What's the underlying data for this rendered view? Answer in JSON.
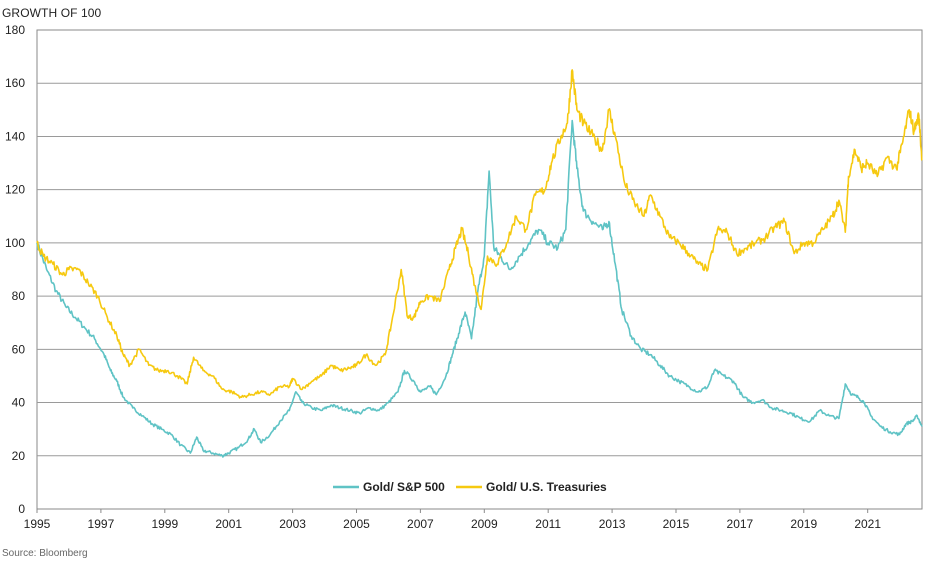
{
  "chart_data": {
    "type": "line",
    "ylabel": "GROWTH OF 100",
    "source": "Source: Bloomberg",
    "xlim": [
      1995,
      2022.7
    ],
    "ylim": [
      0,
      180
    ],
    "yticks": [
      0,
      20,
      40,
      60,
      80,
      100,
      120,
      140,
      160,
      180
    ],
    "xticks": [
      1995,
      1997,
      1999,
      2001,
      2003,
      2005,
      2007,
      2009,
      2011,
      2013,
      2015,
      2017,
      2019,
      2021
    ],
    "grid": "horizontal",
    "legend_position": "bottom-center",
    "series": [
      {
        "name": "Gold/ S&P 500",
        "color": "#5fc3c5",
        "points": [
          [
            1995.0,
            100
          ],
          [
            1995.3,
            90
          ],
          [
            1995.6,
            82
          ],
          [
            1995.9,
            76
          ],
          [
            1996.2,
            72
          ],
          [
            1996.5,
            68
          ],
          [
            1996.8,
            64
          ],
          [
            1997.1,
            58
          ],
          [
            1997.3,
            52
          ],
          [
            1997.5,
            48
          ],
          [
            1997.7,
            42
          ],
          [
            1998.0,
            38
          ],
          [
            1998.3,
            35
          ],
          [
            1998.6,
            32
          ],
          [
            1998.9,
            30
          ],
          [
            1999.2,
            28
          ],
          [
            1999.5,
            24
          ],
          [
            1999.8,
            21
          ],
          [
            2000.0,
            27
          ],
          [
            2000.2,
            22
          ],
          [
            2000.5,
            21
          ],
          [
            2000.8,
            20
          ],
          [
            2001.0,
            21
          ],
          [
            2001.3,
            23
          ],
          [
            2001.6,
            26
          ],
          [
            2001.8,
            30
          ],
          [
            2002.0,
            25
          ],
          [
            2002.3,
            28
          ],
          [
            2002.6,
            33
          ],
          [
            2002.9,
            37
          ],
          [
            2003.1,
            44
          ],
          [
            2003.3,
            40
          ],
          [
            2003.6,
            38
          ],
          [
            2003.9,
            37
          ],
          [
            2004.2,
            39
          ],
          [
            2004.5,
            38
          ],
          [
            2004.8,
            37
          ],
          [
            2005.1,
            36
          ],
          [
            2005.4,
            38
          ],
          [
            2005.7,
            37
          ],
          [
            2006.0,
            40
          ],
          [
            2006.3,
            44
          ],
          [
            2006.5,
            52
          ],
          [
            2006.8,
            48
          ],
          [
            2007.0,
            44
          ],
          [
            2007.3,
            46
          ],
          [
            2007.5,
            43
          ],
          [
            2007.8,
            50
          ],
          [
            2008.0,
            58
          ],
          [
            2008.2,
            66
          ],
          [
            2008.4,
            74
          ],
          [
            2008.6,
            64
          ],
          [
            2008.8,
            82
          ],
          [
            2009.0,
            95
          ],
          [
            2009.15,
            127
          ],
          [
            2009.3,
            98
          ],
          [
            2009.5,
            95
          ],
          [
            2009.8,
            90
          ],
          [
            2010.1,
            95
          ],
          [
            2010.4,
            100
          ],
          [
            2010.7,
            105
          ],
          [
            2011.0,
            100
          ],
          [
            2011.3,
            98
          ],
          [
            2011.55,
            105
          ],
          [
            2011.75,
            146
          ],
          [
            2011.9,
            128
          ],
          [
            2012.1,
            112
          ],
          [
            2012.4,
            108
          ],
          [
            2012.7,
            105
          ],
          [
            2012.9,
            108
          ],
          [
            2013.1,
            92
          ],
          [
            2013.3,
            75
          ],
          [
            2013.6,
            65
          ],
          [
            2013.9,
            60
          ],
          [
            2014.2,
            58
          ],
          [
            2014.5,
            54
          ],
          [
            2014.8,
            50
          ],
          [
            2015.1,
            48
          ],
          [
            2015.4,
            46
          ],
          [
            2015.7,
            44
          ],
          [
            2016.0,
            46
          ],
          [
            2016.2,
            52
          ],
          [
            2016.5,
            50
          ],
          [
            2016.8,
            48
          ],
          [
            2017.1,
            42
          ],
          [
            2017.4,
            40
          ],
          [
            2017.7,
            41
          ],
          [
            2018.0,
            38
          ],
          [
            2018.3,
            37
          ],
          [
            2018.6,
            36
          ],
          [
            2018.9,
            34
          ],
          [
            2019.2,
            33
          ],
          [
            2019.5,
            37
          ],
          [
            2019.8,
            35
          ],
          [
            2020.1,
            34
          ],
          [
            2020.3,
            47
          ],
          [
            2020.5,
            43
          ],
          [
            2020.7,
            42
          ],
          [
            2020.9,
            40
          ],
          [
            2021.1,
            35
          ],
          [
            2021.4,
            31
          ],
          [
            2021.7,
            29
          ],
          [
            2022.0,
            28
          ],
          [
            2022.2,
            32
          ],
          [
            2022.4,
            33
          ],
          [
            2022.55,
            35
          ],
          [
            2022.7,
            31
          ]
        ]
      },
      {
        "name": "Gold/ U.S. Treasuries",
        "color": "#f6c910",
        "points": [
          [
            1995.0,
            100
          ],
          [
            1995.2,
            95
          ],
          [
            1995.5,
            92
          ],
          [
            1995.8,
            88
          ],
          [
            1996.0,
            90
          ],
          [
            1996.3,
            90
          ],
          [
            1996.6,
            85
          ],
          [
            1996.9,
            80
          ],
          [
            1997.2,
            72
          ],
          [
            1997.5,
            65
          ],
          [
            1997.7,
            58
          ],
          [
            1997.9,
            54
          ],
          [
            1998.2,
            60
          ],
          [
            1998.5,
            54
          ],
          [
            1998.8,
            52
          ],
          [
            1999.1,
            52
          ],
          [
            1999.4,
            50
          ],
          [
            1999.7,
            47
          ],
          [
            1999.9,
            57
          ],
          [
            2000.2,
            52
          ],
          [
            2000.5,
            50
          ],
          [
            2000.8,
            45
          ],
          [
            2001.1,
            44
          ],
          [
            2001.4,
            42
          ],
          [
            2001.7,
            43
          ],
          [
            2002.0,
            44
          ],
          [
            2002.3,
            43
          ],
          [
            2002.6,
            46
          ],
          [
            2002.9,
            46
          ],
          [
            2003.0,
            49
          ],
          [
            2003.3,
            45
          ],
          [
            2003.6,
            48
          ],
          [
            2003.9,
            50
          ],
          [
            2004.2,
            54
          ],
          [
            2004.5,
            52
          ],
          [
            2004.8,
            53
          ],
          [
            2005.0,
            54
          ],
          [
            2005.3,
            58
          ],
          [
            2005.6,
            54
          ],
          [
            2005.9,
            58
          ],
          [
            2006.1,
            70
          ],
          [
            2006.4,
            90
          ],
          [
            2006.6,
            72
          ],
          [
            2006.8,
            72
          ],
          [
            2007.0,
            78
          ],
          [
            2007.3,
            80
          ],
          [
            2007.6,
            78
          ],
          [
            2007.9,
            90
          ],
          [
            2008.1,
            98
          ],
          [
            2008.3,
            105
          ],
          [
            2008.5,
            96
          ],
          [
            2008.7,
            84
          ],
          [
            2008.9,
            75
          ],
          [
            2009.1,
            95
          ],
          [
            2009.4,
            92
          ],
          [
            2009.7,
            100
          ],
          [
            2010.0,
            110
          ],
          [
            2010.3,
            105
          ],
          [
            2010.6,
            118
          ],
          [
            2010.9,
            120
          ],
          [
            2011.1,
            130
          ],
          [
            2011.4,
            140
          ],
          [
            2011.6,
            145
          ],
          [
            2011.75,
            165
          ],
          [
            2011.9,
            150
          ],
          [
            2012.1,
            145
          ],
          [
            2012.4,
            140
          ],
          [
            2012.7,
            135
          ],
          [
            2012.9,
            150
          ],
          [
            2013.1,
            140
          ],
          [
            2013.4,
            122
          ],
          [
            2013.7,
            115
          ],
          [
            2014.0,
            110
          ],
          [
            2014.2,
            118
          ],
          [
            2014.5,
            110
          ],
          [
            2014.8,
            102
          ],
          [
            2015.1,
            100
          ],
          [
            2015.4,
            96
          ],
          [
            2015.7,
            92
          ],
          [
            2016.0,
            90
          ],
          [
            2016.3,
            105
          ],
          [
            2016.6,
            104
          ],
          [
            2016.9,
            96
          ],
          [
            2017.2,
            98
          ],
          [
            2017.5,
            100
          ],
          [
            2017.8,
            102
          ],
          [
            2018.1,
            106
          ],
          [
            2018.4,
            108
          ],
          [
            2018.7,
            96
          ],
          [
            2019.0,
            100
          ],
          [
            2019.3,
            100
          ],
          [
            2019.6,
            105
          ],
          [
            2019.9,
            110
          ],
          [
            2020.1,
            116
          ],
          [
            2020.3,
            104
          ],
          [
            2020.4,
            125
          ],
          [
            2020.6,
            135
          ],
          [
            2020.8,
            128
          ],
          [
            2021.0,
            130
          ],
          [
            2021.3,
            125
          ],
          [
            2021.6,
            132
          ],
          [
            2021.9,
            128
          ],
          [
            2022.1,
            138
          ],
          [
            2022.3,
            150
          ],
          [
            2022.45,
            142
          ],
          [
            2022.6,
            148
          ],
          [
            2022.7,
            131
          ]
        ]
      }
    ]
  }
}
